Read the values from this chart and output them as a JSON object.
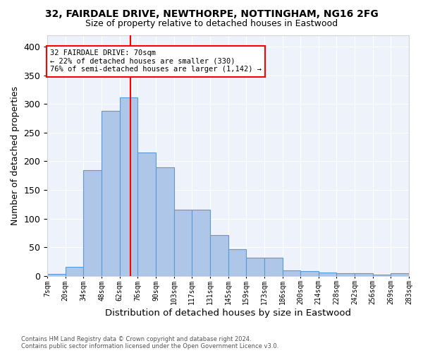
{
  "title1": "32, FAIRDALE DRIVE, NEWTHORPE, NOTTINGHAM, NG16 2FG",
  "title2": "Size of property relative to detached houses in Eastwood",
  "xlabel": "Distribution of detached houses by size in Eastwood",
  "ylabel": "Number of detached properties",
  "categories": [
    "7sqm",
    "20sqm",
    "34sqm",
    "48sqm",
    "62sqm",
    "76sqm",
    "90sqm",
    "103sqm",
    "117sqm",
    "131sqm",
    "145sqm",
    "159sqm",
    "173sqm",
    "186sqm",
    "200sqm",
    "214sqm",
    "228sqm",
    "242sqm",
    "256sqm",
    "269sqm",
    "283sqm"
  ],
  "values": [
    3,
    15,
    185,
    288,
    312,
    215,
    190,
    116,
    116,
    71,
    46,
    32,
    32,
    10,
    8,
    6,
    5,
    5,
    2,
    4
  ],
  "bar_color": "#aec6e8",
  "bar_edge_color": "#5b9bd5",
  "vline_color": "red",
  "vline_position": 4.6,
  "annotation_text": "32 FAIRDALE DRIVE: 70sqm\n← 22% of detached houses are smaller (330)\n76% of semi-detached houses are larger (1,142) →",
  "footer": "Contains HM Land Registry data © Crown copyright and database right 2024.\nContains public sector information licensed under the Open Government Licence v3.0.",
  "bg_color": "#eef3fb",
  "grid_color": "#ffffff",
  "ylim": [
    0,
    420
  ],
  "yticks": [
    0,
    50,
    100,
    150,
    200,
    250,
    300,
    350,
    400
  ]
}
